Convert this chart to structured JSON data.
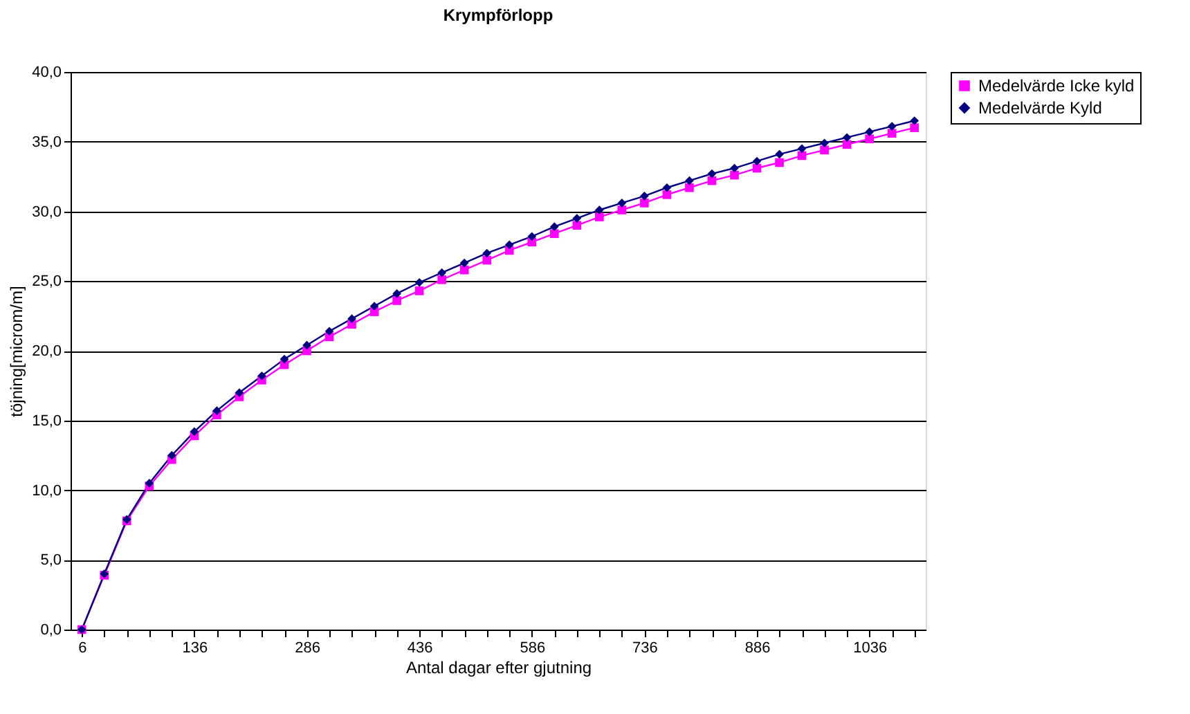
{
  "chart_data": {
    "type": "line",
    "title": "Krympförlopp",
    "xlabel": "Antal dagar efter gjutning",
    "ylabel": "töjning[microm/m]",
    "categories": [
      "6",
      null,
      null,
      null,
      null,
      "136",
      null,
      null,
      null,
      null,
      "286",
      null,
      null,
      null,
      null,
      "436",
      null,
      null,
      null,
      null,
      "586",
      null,
      null,
      null,
      null,
      "736",
      null,
      null,
      null,
      null,
      "886",
      null,
      null,
      null,
      null,
      "1036",
      null,
      null
    ],
    "series": [
      {
        "name": "Medelvärde Icke kyld",
        "color": "#ff00ff",
        "marker": "square",
        "values": [
          0,
          3.9,
          7.8,
          10.3,
          12.2,
          13.9,
          15.4,
          16.7,
          17.9,
          19.0,
          20.0,
          21.0,
          21.9,
          22.8,
          23.6,
          24.3,
          25.1,
          25.8,
          26.5,
          27.2,
          27.8,
          28.4,
          29.0,
          29.6,
          30.1,
          30.6,
          31.2,
          31.7,
          32.2,
          32.6,
          33.1,
          33.5,
          34.0,
          34.4,
          34.8,
          35.2,
          35.6,
          36.0
        ]
      },
      {
        "name": "Medelvärde Kyld",
        "color": "#000080",
        "marker": "diamond",
        "values": [
          0,
          4.0,
          7.9,
          10.5,
          12.5,
          14.2,
          15.7,
          17.0,
          18.2,
          19.4,
          20.4,
          21.4,
          22.3,
          23.2,
          24.1,
          24.9,
          25.6,
          26.3,
          27.0,
          27.6,
          28.2,
          28.9,
          29.5,
          30.1,
          30.6,
          31.1,
          31.7,
          32.2,
          32.7,
          33.1,
          33.6,
          34.1,
          34.5,
          34.9,
          35.3,
          35.7,
          36.1,
          36.5
        ]
      }
    ],
    "ylim": [
      0,
      40
    ],
    "yticks": [
      {
        "value": 0,
        "label": "0,0"
      },
      {
        "value": 5,
        "label": "5,0"
      },
      {
        "value": 10,
        "label": "10,0"
      },
      {
        "value": 15,
        "label": "15,0"
      },
      {
        "value": 20,
        "label": "20,0"
      },
      {
        "value": 25,
        "label": "25,0"
      },
      {
        "value": 30,
        "label": "30,0"
      },
      {
        "value": 35,
        "label": "35,0"
      },
      {
        "value": 40,
        "label": "40,0"
      }
    ],
    "grid": "y",
    "legend": "right"
  }
}
